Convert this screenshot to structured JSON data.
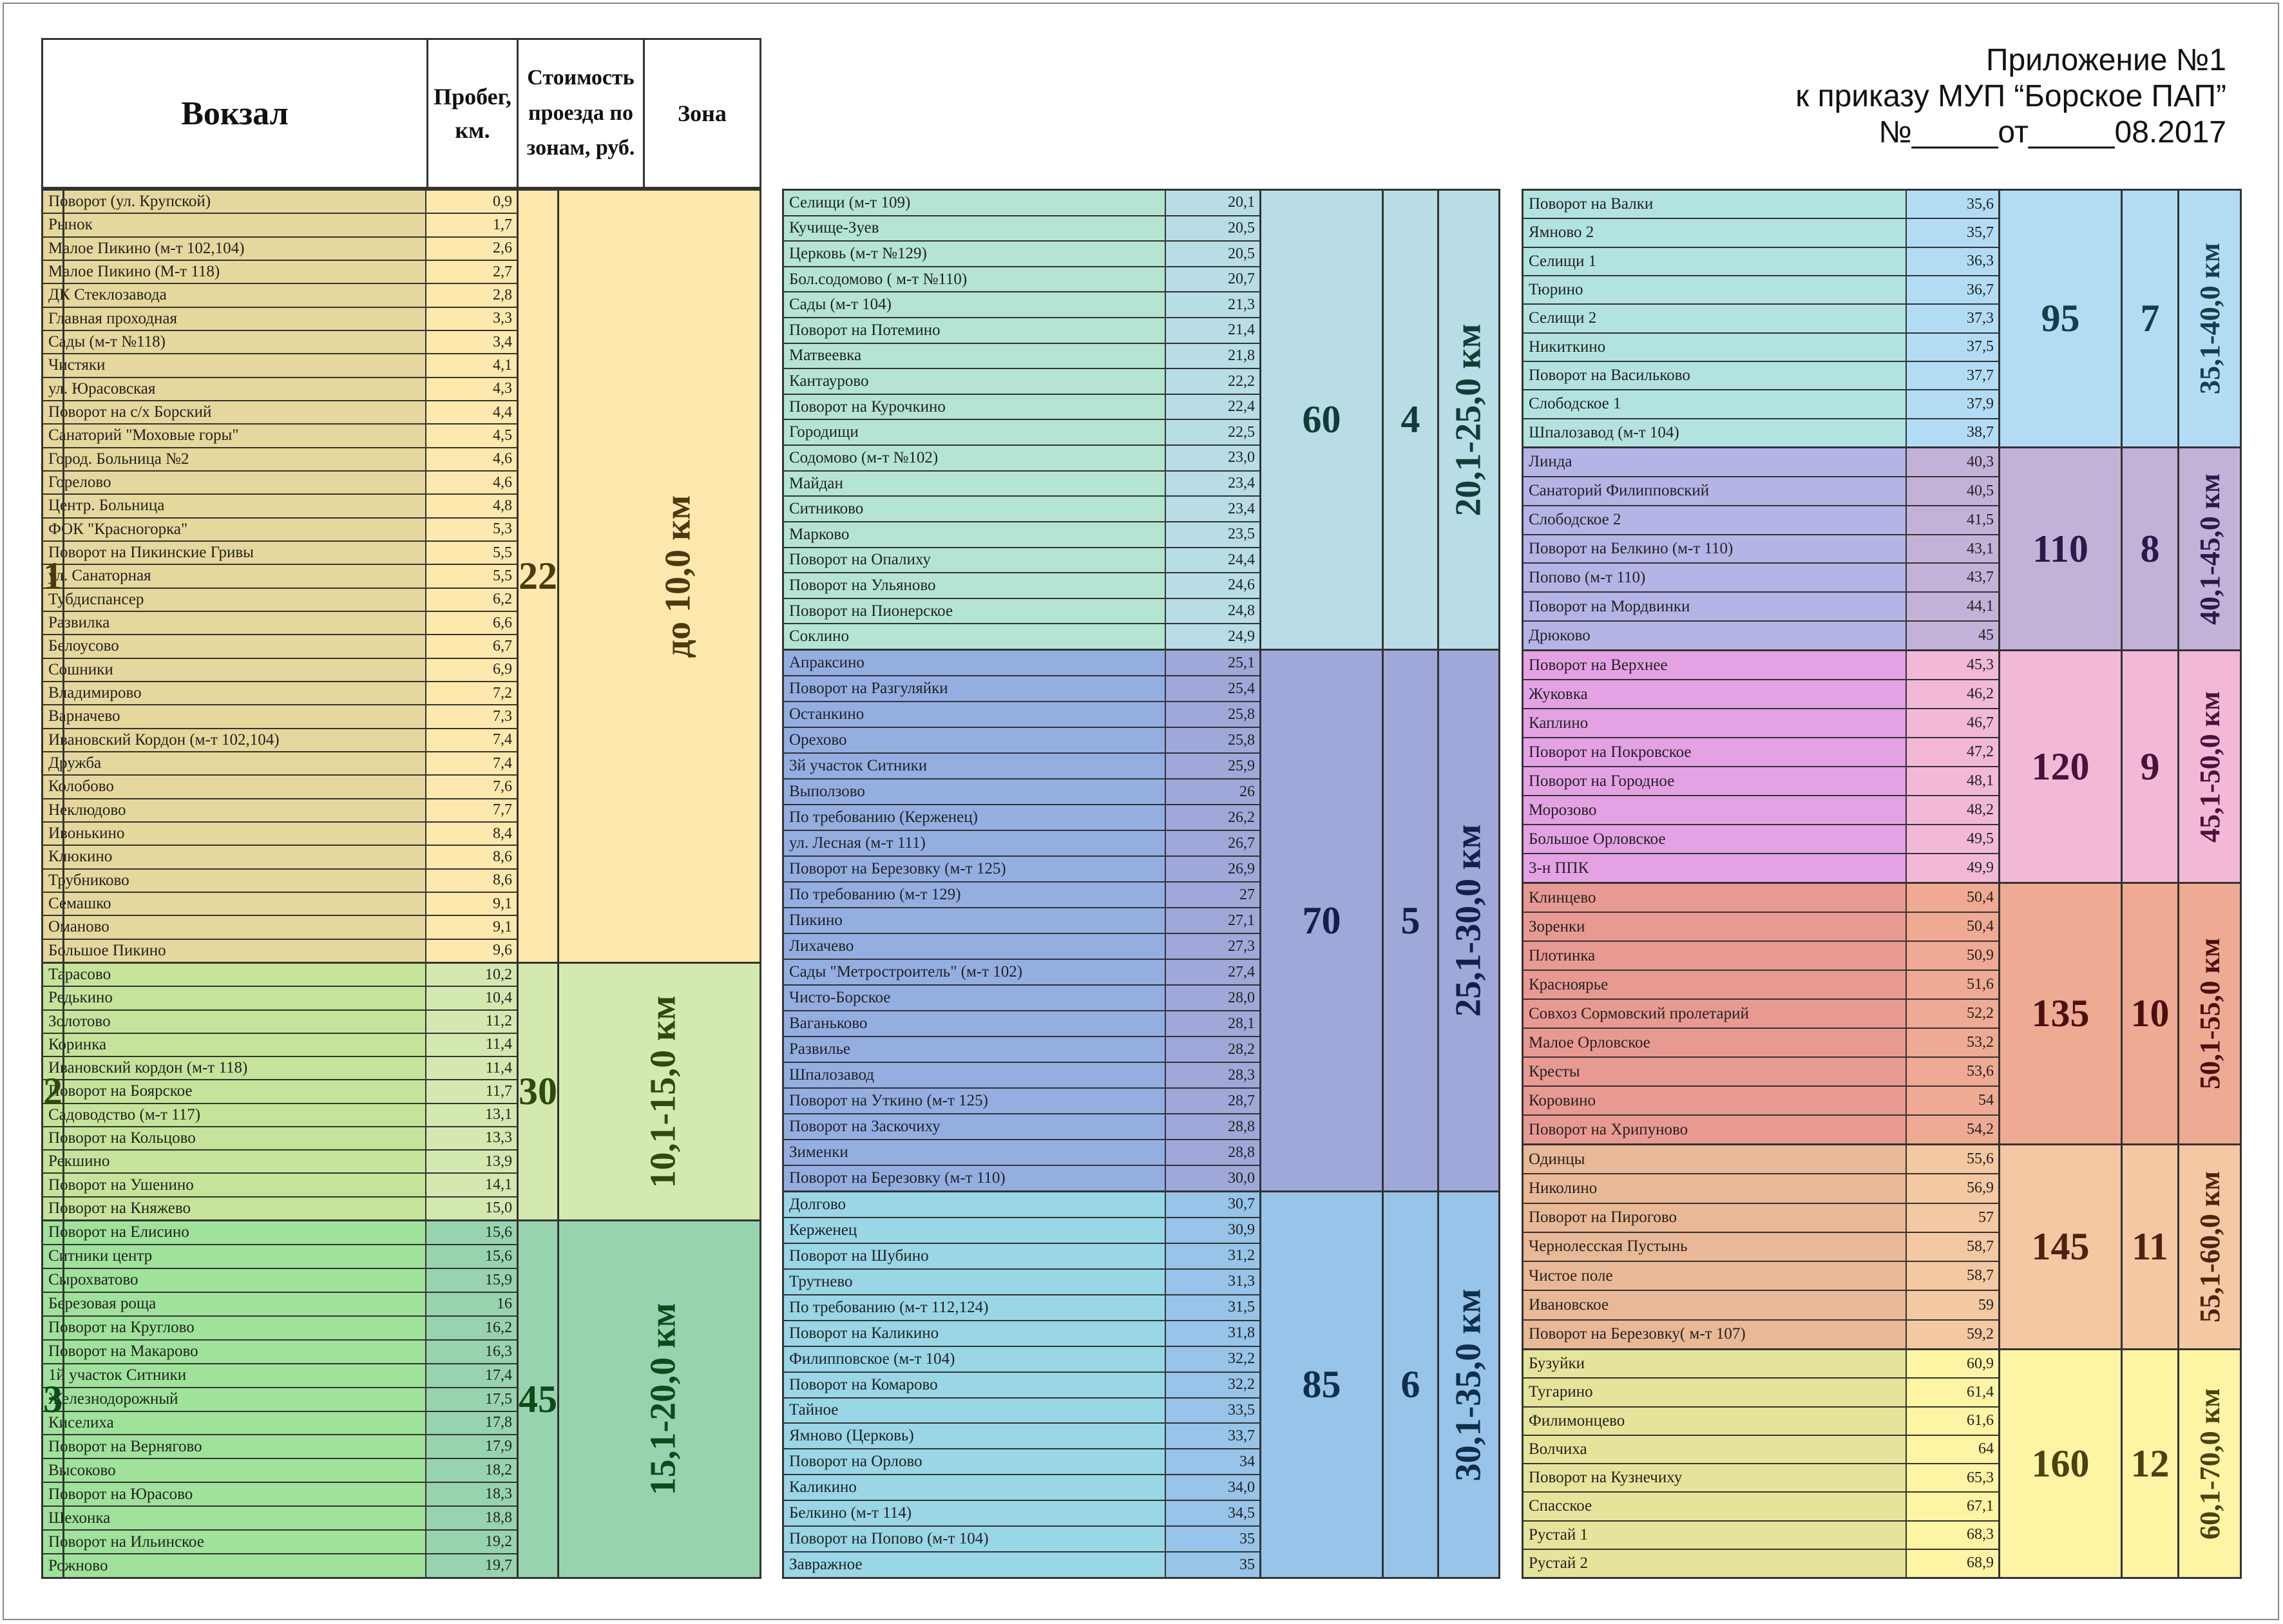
{
  "header": {
    "station": "Вокзал",
    "mileage_line1": "Пробег,",
    "mileage_line2": "км.",
    "cost_line1": "Стоимость",
    "cost_line2": "проезда по",
    "cost_line3": "зонам, руб.",
    "zone": "Зона"
  },
  "annex": {
    "line1": "Приложение №1",
    "line2": "к приказу МУП “Борское ПАП”",
    "line3": "№_____от_____08.2017"
  },
  "zones": [
    {
      "price": "22",
      "zone": "1",
      "range": "до 10,0 км",
      "bg": "#e6d79c",
      "bg2": "#fde9ad",
      "fg": "#4a3a10",
      "stops": [
        [
          "Поворот (ул. Крупской)",
          "0,9"
        ],
        [
          "Рынок",
          "1,7"
        ],
        [
          "Малое Пикино (м-т 102,104)",
          "2,6"
        ],
        [
          "Малое Пикино (М-т 118)",
          "2,7"
        ],
        [
          "ДК Стеклозавода",
          "2,8"
        ],
        [
          "Главная проходная",
          "3,3"
        ],
        [
          "Сады (м-т №118)",
          "3,4"
        ],
        [
          "Чистяки",
          "4,1"
        ],
        [
          "ул. Юрасовская",
          "4,3"
        ],
        [
          "Поворот на с/х Борский",
          "4,4"
        ],
        [
          "Санаторий \"Моховые горы\"",
          "4,5"
        ],
        [
          "Город. Больница №2",
          "4,6"
        ],
        [
          "Горелово",
          "4,6"
        ],
        [
          "Центр. Больница",
          "4,8"
        ],
        [
          "ФОК \"Красногорка\"",
          "5,3"
        ],
        [
          "Поворот на Пикинские Гривы",
          "5,5"
        ],
        [
          "ул. Санаторная",
          "5,5"
        ],
        [
          "Тубдиспансер",
          "6,2"
        ],
        [
          "Развилка",
          "6,6"
        ],
        [
          "Белоусово",
          "6,7"
        ],
        [
          "Сошники",
          "6,9"
        ],
        [
          "Владимирово",
          "7,2"
        ],
        [
          "Варначево",
          "7,3"
        ],
        [
          "Ивановский Кордон (м-т 102,104)",
          "7,4"
        ],
        [
          "Дружба",
          "7,4"
        ],
        [
          "Колобово",
          "7,6"
        ],
        [
          "Неклюдово",
          "7,7"
        ],
        [
          "Ивонькино",
          "8,4"
        ],
        [
          "Клюкино",
          "8,6"
        ],
        [
          "Трубниково",
          "8,6"
        ],
        [
          "Семашко",
          "9,1"
        ],
        [
          "Оманово",
          "9,1"
        ],
        [
          "Большое Пикино",
          "9,6"
        ]
      ]
    },
    {
      "price": "30",
      "zone": "2",
      "range": "10,1-15,0 км",
      "bg": "#c6e39a",
      "bg2": "#d4e9b0",
      "fg": "#2f4a10",
      "stops": [
        [
          "Тарасово",
          "10,2"
        ],
        [
          "Редькино",
          "10,4"
        ],
        [
          "Золотово",
          "11,2"
        ],
        [
          "Коринка",
          "11,4"
        ],
        [
          "Ивановский кордон (м-т 118)",
          "11,4"
        ],
        [
          "Поворот на Боярское",
          "11,7"
        ],
        [
          "Садоводство (м-т 117)",
          "13,1"
        ],
        [
          "Поворот на Кольцово",
          "13,3"
        ],
        [
          "Рекшино",
          "13,9"
        ],
        [
          "Поворот на Ушенино",
          "14,1"
        ],
        [
          "Поворот на Княжево",
          "15,0"
        ]
      ]
    },
    {
      "price": "45",
      "zone": "3",
      "range": "15,1-20,0 км",
      "bg": "#9fe29a",
      "bg2": "#98d3b0",
      "fg": "#0f4a1c",
      "stops": [
        [
          "Поворот на Елисино",
          "15,6"
        ],
        [
          "Ситники центр",
          "15,6"
        ],
        [
          "Сырохватово",
          "15,9"
        ],
        [
          "Березовая роща",
          "16"
        ],
        [
          "Поворот на Круглово",
          "16,2"
        ],
        [
          "Поворот на Макарово",
          "16,3"
        ],
        [
          "1й участок Ситники",
          "17,4"
        ],
        [
          "Железнодорожный",
          "17,5"
        ],
        [
          "Киселиха",
          "17,8"
        ],
        [
          "Поворот на Вернягово",
          "17,9"
        ],
        [
          "Высоково",
          "18,2"
        ],
        [
          "Поворот на Юрасово",
          "18,3"
        ],
        [
          "Шехонка",
          "18,8"
        ],
        [
          "Поворот на Ильинское",
          "19,2"
        ],
        [
          "Рожново",
          "19,7"
        ]
      ]
    },
    {
      "price": "60",
      "zone": "4",
      "range": "20,1-25,0 км",
      "bg": "#b4e5d2",
      "bg2": "#b8dde6",
      "fg": "#123c3a",
      "stops": [
        [
          "Селищи (м-т 109)",
          "20,1"
        ],
        [
          "Кучище-Зуев",
          "20,5"
        ],
        [
          "Церковь (м-т №129)",
          "20,5"
        ],
        [
          "Бол.содомово ( м-т №110)",
          "20,7"
        ],
        [
          "Сады (м-т 104)",
          "21,3"
        ],
        [
          "Поворот на Потемино",
          "21,4"
        ],
        [
          "Матвеевка",
          "21,8"
        ],
        [
          "Кантаурово",
          "22,2"
        ],
        [
          "Поворот на Курочкино",
          "22,4"
        ],
        [
          "Городищи",
          "22,5"
        ],
        [
          "Содомово (м-т №102)",
          "23,0"
        ],
        [
          "Майдан",
          "23,4"
        ],
        [
          "Ситниково",
          "23,4"
        ],
        [
          "Марково",
          "23,5"
        ],
        [
          "Поворот на Опалиху",
          "24,4"
        ],
        [
          "Поворот на Ульяново",
          "24,6"
        ],
        [
          "Поворот на Пионерское",
          "24,8"
        ],
        [
          "Соклино",
          "24,9"
        ]
      ]
    },
    {
      "price": "70",
      "zone": "5",
      "range": "25,1-30,0 км",
      "bg": "#94aee2",
      "bg2": "#9fa8d8",
      "fg": "#14204a",
      "stops": [
        [
          "Апраксино",
          "25,1"
        ],
        [
          "Поворот на Разгуляйки",
          "25,4"
        ],
        [
          "Останкино",
          "25,8"
        ],
        [
          "Орехово",
          "25,8"
        ],
        [
          "3й участок Ситники",
          "25,9"
        ],
        [
          "Выползово",
          "26"
        ],
        [
          "По требованию (Керженец)",
          "26,2"
        ],
        [
          "ул. Лесная (м-т 111)",
          "26,7"
        ],
        [
          "Поворот на Березовку (м-т 125)",
          "26,9"
        ],
        [
          "По требованию (м-т 129)",
          "27"
        ],
        [
          "Пикино",
          "27,1"
        ],
        [
          "Лихачево",
          "27,3"
        ],
        [
          "Сады \"Метростроитель\" (м-т 102)",
          "27,4"
        ],
        [
          "Чисто-Борское",
          "28,0"
        ],
        [
          "Ваганьково",
          "28,1"
        ],
        [
          "Развилье",
          "28,2"
        ],
        [
          "Шпалозавод",
          "28,3"
        ],
        [
          "Поворот на Уткино (м-т 125)",
          "28,7"
        ],
        [
          "Поворот на Заскочиху",
          "28,8"
        ],
        [
          "Зименки",
          "28,8"
        ],
        [
          "Поворот на Березовку (м-т 110)",
          "30,0"
        ]
      ]
    },
    {
      "price": "85",
      "zone": "6",
      "range": "30,1-35,0 км",
      "bg": "#99d6e6",
      "bg2": "#97c4e8",
      "fg": "#0f2f4a",
      "stops": [
        [
          "Долгово",
          "30,7"
        ],
        [
          "Керженец",
          "30,9"
        ],
        [
          "Поворот на Шубино",
          "31,2"
        ],
        [
          "Трутнево",
          "31,3"
        ],
        [
          "По требованию (м-т 112,124)",
          "31,5"
        ],
        [
          "Поворот на Каликино",
          "31,8"
        ],
        [
          "Филипповское (м-т 104)",
          "32,2"
        ],
        [
          "Поворот на Комарово",
          "32,2"
        ],
        [
          "Тайное",
          "33,5"
        ],
        [
          "Ямново (Церковь)",
          "33,7"
        ],
        [
          "Поворот на Орлово",
          "34"
        ],
        [
          "Каликино",
          "34,0"
        ],
        [
          "Белкино (м-т 114)",
          "34,5"
        ],
        [
          "Поворот на Попово (м-т 104)",
          "35"
        ],
        [
          "Завражное",
          "35"
        ]
      ]
    },
    {
      "price": "95",
      "zone": "7",
      "range": "35,1-40,0 км",
      "bg": "#b3e3e0",
      "bg2": "#b2dcf4",
      "fg": "#12404a",
      "stops": [
        [
          "Поворот на Валки",
          "35,6"
        ],
        [
          "Ямново 2",
          "35,7"
        ],
        [
          "Селищи 1",
          "36,3"
        ],
        [
          "Тюрино",
          "36,7"
        ],
        [
          "Селищи 2",
          "37,3"
        ],
        [
          "Никиткино",
          "37,5"
        ],
        [
          "Поворот на Васильково",
          "37,7"
        ],
        [
          "Слободское 1",
          "37,9"
        ],
        [
          "Шпалозавод (м-т 104)",
          "38,7"
        ]
      ]
    },
    {
      "price": "110",
      "zone": "8",
      "range": "40,1-45,0 км",
      "bg": "#b4b4e6",
      "bg2": "#c3b2d8",
      "fg": "#281a4a",
      "stops": [
        [
          "Линда",
          "40,3"
        ],
        [
          "Санаторий Филипповский",
          "40,5"
        ],
        [
          "Слободское 2",
          "41,5"
        ],
        [
          "Поворот на Белкино (м-т 110)",
          "43,1"
        ],
        [
          "Попово (м-т 110)",
          "43,7"
        ],
        [
          "Поворот на Мордвинки",
          "44,1"
        ],
        [
          "Дрюково",
          "45"
        ]
      ]
    },
    {
      "price": "120",
      "zone": "9",
      "range": "45,1-50,0 км",
      "bg": "#e4a2e4",
      "bg2": "#f2b9d6",
      "fg": "#4a103e",
      "stops": [
        [
          "Поворот на Верхнее",
          "45,3"
        ],
        [
          "Жуковка",
          "46,2"
        ],
        [
          "Каплино",
          "46,7"
        ],
        [
          "Поворот на Покровское",
          "47,2"
        ],
        [
          "Поворот на Городное",
          "48,1"
        ],
        [
          "Морозово",
          "48,2"
        ],
        [
          "Большое Орловское",
          "49,5"
        ],
        [
          "3-н ППК",
          "49,9"
        ]
      ]
    },
    {
      "price": "135",
      "zone": "10",
      "range": "50,1-55,0 км",
      "bg": "#e89a92",
      "bg2": "#eeaa92",
      "fg": "#4a1010",
      "stops": [
        [
          "Клинцево",
          "50,4"
        ],
        [
          "Зоренки",
          "50,4"
        ],
        [
          "Плотинка",
          "50,9"
        ],
        [
          "Красноярье",
          "51,6"
        ],
        [
          "Совхоз Сормовский пролетарий",
          "52,2"
        ],
        [
          "Малое Орловское",
          "53,2"
        ],
        [
          "Кресты",
          "53,6"
        ],
        [
          "Коровино",
          "54"
        ],
        [
          "Поворот на Хрипуново",
          "54,2"
        ]
      ]
    },
    {
      "price": "145",
      "zone": "11",
      "range": "55,1-60,0 км",
      "bg": "#e9b896",
      "bg2": "#f3c8a2",
      "fg": "#4a2410",
      "stops": [
        [
          "Одинцы",
          "55,6"
        ],
        [
          "Николино",
          "56,9"
        ],
        [
          "Поворот на Пирогово",
          "57"
        ],
        [
          "Чернолесская Пустынь",
          "58,7"
        ],
        [
          "Чистое поле",
          "58,7"
        ],
        [
          "Ивановское",
          "59"
        ],
        [
          "Поворот на Березовку( м-т 107)",
          "59,2"
        ]
      ]
    },
    {
      "price": "160",
      "zone": "12",
      "range": "60,1-70,0 км",
      "bg": "#e6e49a",
      "bg2": "#fdf4a4",
      "fg": "#4a4210",
      "stops": [
        [
          "Бузуйки",
          "60,9"
        ],
        [
          "Тугарино",
          "61,4"
        ],
        [
          "Филимонцево",
          "61,6"
        ],
        [
          "Волчиха",
          "64"
        ],
        [
          "Поворот на Кузнечиху",
          "65,3"
        ],
        [
          "Спасское",
          "67,1"
        ],
        [
          "Рустай 1",
          "68,3"
        ],
        [
          "Рустай 2",
          "68,9"
        ]
      ]
    }
  ]
}
